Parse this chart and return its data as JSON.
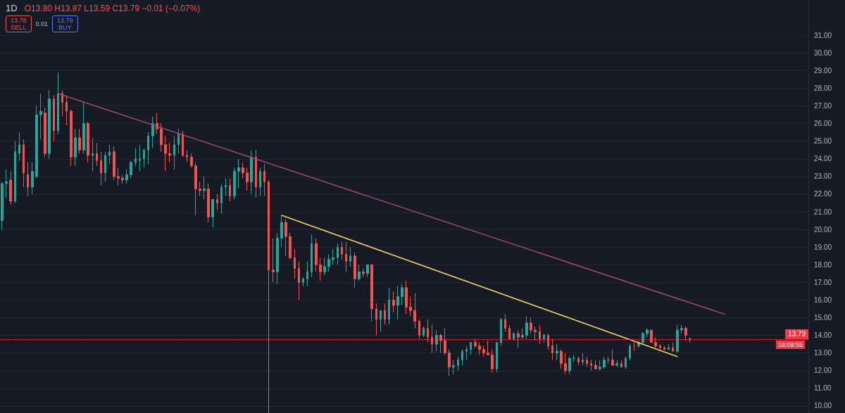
{
  "chart_data": {
    "type": "candlestick",
    "title": "1D",
    "subtitle": "O13.80 H13.87 L13.59 C13.79 −0.01 (−0.07%)",
    "annotations": [
      "13.78",
      "SELL",
      "0.01",
      "13.79",
      "BUY",
      "16:09:55"
    ],
    "categories": [
      null,
      null,
      null,
      null,
      null,
      null,
      null,
      null,
      null,
      null,
      null,
      null,
      null,
      null,
      null,
      null,
      null,
      null,
      null,
      null,
      null,
      null,
      null,
      null,
      null,
      null,
      null,
      null,
      null,
      null,
      null,
      null,
      null,
      null,
      null,
      null,
      null,
      null,
      null,
      null,
      null,
      null,
      null,
      null,
      null,
      null,
      null,
      null,
      null,
      null,
      null,
      null,
      null,
      null,
      null,
      null,
      null,
      null,
      null,
      null,
      null,
      null,
      null,
      null,
      null,
      null,
      null,
      null,
      null,
      null,
      null,
      null,
      null,
      null,
      null,
      null,
      null,
      null,
      null,
      null,
      null,
      null,
      null,
      null,
      null,
      null,
      null,
      null,
      null,
      null,
      null,
      null,
      null,
      null,
      null,
      null,
      null,
      null,
      null,
      null,
      null,
      null,
      null,
      null,
      null,
      null,
      null,
      null,
      null,
      null,
      null,
      null,
      null,
      null,
      null,
      null,
      null,
      null,
      null,
      null,
      null,
      null,
      null,
      null,
      null,
      null,
      null,
      null,
      null,
      null,
      null,
      null,
      null,
      null,
      null,
      null,
      null,
      null,
      null,
      null,
      null,
      null,
      null,
      null,
      null,
      null,
      null,
      null,
      null,
      null,
      null,
      null,
      null,
      null,
      null,
      null,
      null,
      null,
      null,
      null,
      null,
      null,
      null,
      null,
      null,
      null,
      null,
      null,
      null,
      null,
      null,
      null,
      null,
      null,
      null,
      null,
      null,
      null,
      null,
      null,
      null,
      null,
      null,
      null,
      null,
      null,
      null,
      null
    ],
    "series": [
      {
        "type": "candlestick",
        "colors": [
          "#26a69a",
          "#26a69a",
          "#ef5350",
          "#26a69a",
          "#26a69a",
          "#ef5350",
          "#ef5350",
          "#26a69a",
          "#26a69a",
          "#26a69a",
          "#ef5350",
          "#26a69a",
          "#ef5350",
          "#26a69a",
          "#ef5350",
          "#ef5350",
          "#ef5350",
          "#26a69a",
          "#ef5350",
          "#26a69a",
          "#ef5350",
          "#26a69a",
          "#ef5350",
          "#ef5350",
          "#26a69a",
          "#26a69a",
          "#ef5350",
          "#ef5350",
          "#ef5350",
          "#26a69a",
          "#26a69a",
          "#26a69a",
          "#26a69a",
          "#26a69a",
          "#26a69a",
          "#26a69a",
          "#ef5350",
          "#ef5350",
          "#ef5350",
          "#ef5350",
          "#26a69a",
          "#26a69a",
          "#ef5350",
          "#ef5350",
          "#ef5350",
          "#ef5350",
          "#ef5350",
          "#26a69a",
          "#ef5350",
          "#26a69a",
          "#ef5350",
          "#26a69a",
          "#26a69a",
          "#ef5350",
          "#26a69a",
          "#26a69a",
          "#ef5350",
          "#ef5350",
          "#26a69a",
          "#ef5350",
          "#26a69a",
          "#ef5350",
          "#ef5350",
          "#ef5350",
          "#26a69a",
          "#26a69a",
          "#ef5350",
          "#ef5350",
          "#ef5350",
          "#ef5350",
          "#26a69a",
          "#26a69a",
          "#26a69a",
          "#ef5350",
          "#ef5350",
          "#26a69a",
          "#26a69a",
          "#26a69a",
          "#26a69a",
          "#ef5350",
          "#ef5350",
          "#26a69a",
          "#ef5350",
          "#26a69a",
          "#ef5350",
          "#26a69a",
          "#ef5350",
          "#ef5350",
          "#26a69a",
          "#ef5350",
          "#26a69a",
          "#ef5350",
          "#26a69a",
          "#26a69a",
          "#ef5350",
          "#ef5350",
          "#ef5350",
          "#ef5350",
          "#26a69a",
          "#ef5350",
          "#ef5350",
          "#26a69a",
          "#ef5350",
          "#ef5350",
          "#ef5350",
          "#26a69a",
          "#26a69a",
          "#26a69a",
          "#26a69a",
          "#26a69a",
          "#ef5350",
          "#ef5350",
          "#ef5350",
          "#ef5350",
          "#ef5350",
          "#26a69a",
          "#26a69a",
          "#ef5350",
          "#ef5350",
          "#26a69a",
          "#ef5350",
          "#26a69a",
          "#26a69a",
          "#ef5350",
          "#ef5350",
          "#ef5350",
          "#26a69a",
          "#ef5350",
          "#ef5350",
          "#26a69a",
          "#ef5350",
          "#ef5350",
          "#26a69a",
          "#26a69a",
          "#ef5350",
          "#26a69a",
          "#ef5350",
          "#ef5350",
          "#ef5350",
          "#26a69a",
          "#26a69a",
          "#ef5350",
          "#ef5350",
          "#26a69a",
          "#ef5350",
          "#26a69a",
          "#26a69a",
          "#ef5350",
          "#26a69a",
          "#26a69a",
          "#26a69a",
          "#ef5350",
          "#ef5350",
          "#ef5350",
          "#ef5350",
          "#26a69a",
          "#ef5350",
          "#26a69a",
          "#26a69a",
          "#ef5350",
          "#ef5350",
          null,
          null,
          null,
          null,
          null,
          null,
          null,
          null,
          null,
          null,
          null,
          null,
          null,
          null,
          null,
          null,
          null,
          null,
          null,
          null,
          null,
          null,
          null,
          null,
          null,
          null,
          null
        ],
        "ohlc": [
          [
            20.5,
            22.7,
            20.0,
            22.6
          ],
          [
            22.6,
            23.4,
            21.8,
            22.7
          ],
          [
            22.8,
            23.3,
            21.4,
            21.6
          ],
          [
            21.6,
            25.0,
            21.5,
            24.4
          ],
          [
            24.3,
            25.5,
            23.9,
            24.8
          ],
          [
            24.8,
            25.1,
            22.4,
            23.2
          ],
          [
            23.1,
            23.8,
            21.9,
            22.4
          ],
          [
            22.4,
            23.8,
            22.0,
            23.3
          ],
          [
            23.0,
            27.0,
            22.9,
            26.5
          ],
          [
            26.5,
            27.7,
            25.1,
            26.7
          ],
          [
            26.6,
            26.9,
            24.1,
            24.3
          ],
          [
            24.3,
            27.9,
            24.0,
            27.4
          ],
          [
            27.4,
            27.6,
            25.0,
            25.6
          ],
          [
            25.6,
            28.9,
            25.4,
            27.7
          ],
          [
            27.7,
            27.9,
            26.4,
            27.2
          ],
          [
            27.2,
            27.6,
            25.9,
            26.7
          ],
          [
            26.7,
            26.8,
            23.6,
            24.1
          ],
          [
            24.1,
            25.7,
            23.6,
            25.2
          ],
          [
            25.2,
            25.7,
            24.3,
            24.5
          ],
          [
            24.5,
            27.2,
            24.3,
            26.0
          ],
          [
            26.0,
            26.1,
            23.8,
            24.2
          ],
          [
            24.2,
            25.2,
            23.3,
            24.3
          ],
          [
            24.3,
            24.9,
            23.6,
            23.9
          ],
          [
            23.9,
            24.4,
            22.5,
            23.2
          ],
          [
            23.2,
            24.4,
            22.7,
            24.2
          ],
          [
            24.2,
            24.8,
            23.7,
            24.4
          ],
          [
            24.4,
            24.7,
            22.8,
            23.0
          ],
          [
            23.0,
            23.5,
            22.5,
            22.9
          ],
          [
            22.9,
            23.1,
            22.6,
            22.8
          ],
          [
            22.8,
            23.4,
            22.6,
            23.1
          ],
          [
            23.1,
            23.9,
            22.9,
            23.8
          ],
          [
            23.8,
            24.6,
            23.6,
            24.0
          ],
          [
            23.9,
            24.8,
            23.3,
            24.0
          ],
          [
            24.0,
            24.6,
            23.5,
            24.5
          ],
          [
            24.5,
            25.5,
            23.7,
            25.3
          ],
          [
            25.3,
            26.4,
            24.6,
            26.0
          ],
          [
            26.0,
            26.6,
            25.4,
            25.7
          ],
          [
            25.7,
            26.0,
            24.4,
            24.8
          ],
          [
            24.8,
            25.3,
            23.3,
            24.3
          ],
          [
            24.3,
            24.9,
            23.8,
            24.2
          ],
          [
            24.2,
            25.3,
            23.4,
            24.8
          ],
          [
            24.8,
            25.7,
            24.3,
            25.4
          ],
          [
            25.4,
            25.6,
            24.1,
            24.2
          ],
          [
            24.2,
            24.5,
            23.8,
            24.1
          ],
          [
            24.1,
            24.3,
            23.5,
            23.6
          ],
          [
            23.6,
            23.8,
            20.8,
            22.3
          ],
          [
            22.3,
            22.7,
            21.9,
            22.2
          ],
          [
            22.2,
            23.0,
            21.7,
            22.3
          ],
          [
            22.3,
            22.6,
            20.4,
            20.7
          ],
          [
            20.7,
            21.7,
            20.1,
            21.7
          ],
          [
            21.7,
            22.0,
            21.1,
            21.5
          ],
          [
            21.5,
            22.6,
            20.9,
            22.4
          ],
          [
            22.4,
            22.9,
            21.9,
            22.5
          ],
          [
            22.5,
            22.9,
            21.6,
            21.9
          ],
          [
            21.9,
            23.5,
            21.7,
            23.3
          ],
          [
            23.3,
            24.0,
            22.3,
            23.5
          ],
          [
            23.5,
            23.8,
            22.9,
            23.2
          ],
          [
            23.2,
            23.5,
            22.2,
            22.7
          ],
          [
            22.7,
            24.5,
            22.0,
            24.1
          ],
          [
            24.1,
            24.5,
            21.8,
            22.4
          ],
          [
            22.4,
            23.5,
            21.9,
            23.3
          ],
          [
            23.3,
            23.7,
            21.9,
            22.7
          ],
          [
            22.7,
            22.8,
            9.6,
            17.7
          ],
          [
            17.7,
            19.5,
            17.0,
            17.6
          ],
          [
            17.6,
            19.8,
            16.9,
            19.5
          ],
          [
            19.5,
            20.8,
            19.0,
            20.4
          ],
          [
            20.4,
            20.6,
            18.5,
            19.6
          ],
          [
            19.6,
            19.8,
            18.3,
            18.4
          ],
          [
            18.4,
            18.9,
            17.2,
            17.8
          ],
          [
            17.8,
            18.2,
            16.0,
            17.0
          ],
          [
            17.0,
            17.3,
            16.8,
            17.2
          ],
          [
            17.2,
            18.2,
            16.8,
            17.6
          ],
          [
            17.6,
            19.7,
            17.3,
            19.2
          ],
          [
            19.2,
            19.5,
            17.6,
            18.0
          ],
          [
            18.0,
            18.4,
            17.1,
            17.6
          ],
          [
            17.6,
            18.4,
            17.4,
            17.9
          ],
          [
            17.9,
            18.6,
            17.6,
            18.3
          ],
          [
            18.3,
            18.9,
            18.0,
            18.4
          ],
          [
            18.4,
            19.2,
            18.0,
            19.0
          ],
          [
            19.0,
            19.3,
            18.3,
            18.6
          ],
          [
            18.6,
            19.3,
            17.6,
            18.2
          ],
          [
            18.2,
            19.0,
            17.9,
            18.5
          ],
          [
            18.5,
            18.7,
            16.7,
            17.2
          ],
          [
            17.2,
            18.0,
            17.1,
            17.6
          ],
          [
            17.6,
            17.8,
            17.3,
            17.5
          ],
          [
            17.5,
            18.0,
            17.3,
            18.0
          ],
          [
            18.0,
            18.0,
            14.8,
            15.5
          ],
          [
            15.5,
            15.8,
            14.0,
            14.9
          ],
          [
            14.9,
            15.4,
            14.2,
            15.4
          ],
          [
            15.4,
            15.8,
            14.6,
            14.9
          ],
          [
            14.9,
            16.7,
            14.6,
            16.0
          ],
          [
            16.0,
            16.5,
            15.3,
            15.7
          ],
          [
            15.7,
            16.8,
            14.9,
            16.2
          ],
          [
            16.2,
            16.9,
            15.7,
            16.7
          ],
          [
            16.7,
            17.1,
            15.2,
            15.6
          ],
          [
            15.6,
            16.2,
            15.1,
            15.4
          ],
          [
            15.4,
            16.4,
            14.4,
            14.8
          ],
          [
            14.8,
            14.9,
            13.8,
            14.0
          ],
          [
            14.0,
            14.5,
            13.9,
            14.4
          ],
          [
            14.4,
            14.9,
            13.6,
            13.9
          ],
          [
            13.9,
            14.6,
            13.0,
            13.5
          ],
          [
            13.5,
            14.3,
            13.1,
            14.0
          ],
          [
            14.0,
            14.1,
            13.0,
            13.7
          ],
          [
            13.7,
            14.4,
            12.9,
            13.0
          ],
          [
            13.0,
            13.2,
            11.7,
            12.2
          ],
          [
            12.2,
            12.6,
            11.8,
            12.3
          ],
          [
            12.3,
            12.8,
            12.0,
            12.6
          ],
          [
            12.6,
            13.2,
            12.3,
            13.1
          ],
          [
            13.1,
            13.4,
            12.6,
            13.2
          ],
          [
            13.2,
            13.6,
            12.9,
            13.6
          ],
          [
            13.6,
            13.8,
            13.3,
            13.4
          ],
          [
            13.4,
            13.6,
            12.9,
            13.2
          ],
          [
            13.2,
            13.4,
            12.8,
            13.0
          ],
          [
            13.0,
            13.7,
            12.9,
            12.9
          ],
          [
            12.9,
            13.2,
            11.9,
            12.1
          ],
          [
            12.1,
            13.6,
            11.9,
            13.6
          ],
          [
            13.6,
            15.0,
            13.4,
            14.9
          ],
          [
            14.9,
            15.2,
            14.2,
            14.4
          ],
          [
            14.4,
            14.6,
            13.8,
            13.8
          ],
          [
            13.8,
            14.2,
            13.7,
            14.1
          ],
          [
            14.1,
            14.3,
            13.3,
            13.9
          ],
          [
            13.9,
            14.4,
            13.8,
            14.0
          ],
          [
            14.0,
            15.1,
            13.8,
            14.7
          ],
          [
            14.7,
            15.0,
            14.1,
            14.3
          ],
          [
            14.3,
            14.5,
            13.7,
            14.2
          ],
          [
            14.2,
            14.6,
            13.5,
            13.8
          ],
          [
            13.8,
            14.1,
            13.6,
            14.0
          ],
          [
            14.0,
            14.1,
            13.2,
            13.4
          ],
          [
            13.4,
            13.8,
            12.6,
            13.0
          ],
          [
            13.0,
            13.5,
            12.6,
            13.1
          ],
          [
            13.1,
            13.2,
            12.1,
            12.4
          ],
          [
            12.4,
            13.0,
            11.8,
            12.0
          ],
          [
            12.0,
            12.8,
            11.8,
            12.7
          ],
          [
            12.7,
            12.9,
            12.5,
            12.7
          ],
          [
            12.7,
            12.8,
            12.3,
            12.5
          ],
          [
            12.5,
            13.0,
            12.3,
            12.6
          ],
          [
            12.6,
            12.8,
            12.2,
            12.4
          ],
          [
            12.4,
            12.6,
            12.0,
            12.3
          ],
          [
            12.3,
            12.6,
            12.1,
            12.1
          ],
          [
            12.1,
            12.6,
            12.0,
            12.2
          ],
          [
            12.2,
            12.8,
            12.1,
            12.6
          ],
          [
            12.6,
            12.8,
            12.4,
            12.6
          ],
          [
            12.6,
            13.2,
            12.3,
            12.3
          ],
          [
            12.3,
            12.6,
            12.2,
            12.4
          ],
          [
            12.4,
            12.6,
            12.2,
            12.2
          ],
          [
            12.2,
            12.8,
            12.1,
            12.7
          ],
          [
            12.7,
            13.5,
            12.6,
            13.4
          ],
          [
            13.4,
            13.6,
            13.1,
            13.4
          ],
          [
            13.4,
            13.7,
            13.3,
            13.6
          ],
          [
            13.6,
            14.2,
            13.5,
            14.1
          ],
          [
            14.1,
            14.4,
            13.9,
            14.3
          ],
          [
            14.3,
            14.3,
            13.6,
            13.6
          ],
          [
            13.6,
            13.9,
            13.3,
            13.4
          ],
          [
            13.4,
            13.5,
            13.2,
            13.3
          ],
          [
            13.3,
            13.4,
            13.2,
            13.2
          ],
          [
            13.2,
            13.5,
            13.2,
            13.3
          ],
          [
            13.3,
            13.6,
            13.1,
            13.1
          ],
          [
            13.1,
            14.6,
            13.0,
            14.3
          ],
          [
            14.3,
            14.6,
            14.1,
            14.4
          ],
          [
            14.4,
            14.5,
            13.7,
            14.0
          ],
          [
            13.8,
            13.87,
            13.59,
            13.79
          ],
          null,
          null,
          null,
          null,
          null,
          null,
          null,
          null,
          null,
          null,
          null,
          null,
          null,
          null,
          null,
          null,
          null,
          null,
          null,
          null,
          null,
          null,
          null,
          null,
          null,
          null,
          null
        ]
      },
      {
        "type": "line",
        "color": "#a3476a",
        "values": [
          null,
          null,
          null,
          null,
          null,
          null,
          null,
          null,
          null,
          null,
          null,
          null,
          null,
          27.7,
          null,
          null,
          null,
          null,
          null,
          null,
          null,
          null,
          null,
          null,
          null,
          null,
          null,
          null,
          null,
          null,
          null,
          null,
          null,
          null,
          null,
          null,
          null,
          null,
          null,
          null,
          null,
          null,
          null,
          null,
          null,
          null,
          null,
          null,
          null,
          null,
          null,
          null,
          null,
          null,
          null,
          null,
          null,
          null,
          null,
          null,
          null,
          null,
          null,
          null,
          null,
          null,
          null,
          null,
          null,
          null,
          null,
          null,
          null,
          null,
          null,
          null,
          null,
          null,
          null,
          null,
          null,
          null,
          null,
          null,
          null,
          null,
          null,
          null,
          null,
          null,
          null,
          null,
          null,
          null,
          null,
          null,
          null,
          null,
          null,
          null,
          null,
          null,
          null,
          null,
          null,
          null,
          null,
          null,
          null,
          null,
          null,
          null,
          null,
          null,
          null,
          null,
          null,
          null,
          null,
          null,
          null,
          null,
          null,
          null,
          null,
          null,
          null,
          null,
          null,
          null,
          null,
          null,
          null,
          null,
          null,
          null,
          null,
          null,
          null,
          null,
          null,
          null,
          null,
          null,
          null,
          null,
          null,
          null,
          null,
          null,
          null,
          null,
          null,
          null,
          null,
          null,
          null,
          null,
          null,
          null,
          null,
          null,
          null,
          null,
          null,
          null,
          null,
          null,
          15.2,
          null,
          null,
          null,
          null,
          null,
          null,
          null,
          null,
          null,
          null,
          null,
          null,
          null,
          null,
          null,
          null,
          null,
          null,
          null
        ]
      },
      {
        "type": "line",
        "color": "#f0d35a",
        "values": [
          null,
          null,
          null,
          null,
          null,
          null,
          null,
          null,
          null,
          null,
          null,
          null,
          null,
          null,
          null,
          null,
          null,
          null,
          null,
          null,
          null,
          null,
          null,
          null,
          null,
          null,
          null,
          null,
          null,
          null,
          null,
          null,
          null,
          null,
          null,
          null,
          null,
          null,
          null,
          null,
          null,
          null,
          null,
          null,
          null,
          null,
          null,
          null,
          null,
          null,
          null,
          null,
          null,
          null,
          null,
          null,
          null,
          null,
          null,
          null,
          null,
          null,
          null,
          null,
          null,
          20.8,
          null,
          null,
          null,
          null,
          null,
          null,
          null,
          null,
          null,
          null,
          null,
          null,
          null,
          null,
          null,
          null,
          null,
          null,
          null,
          null,
          null,
          null,
          null,
          null,
          null,
          null,
          null,
          null,
          null,
          null,
          null,
          null,
          null,
          null,
          null,
          null,
          null,
          null,
          null,
          null,
          null,
          null,
          null,
          null,
          null,
          null,
          null,
          null,
          null,
          null,
          null,
          null,
          null,
          null,
          null,
          null,
          null,
          null,
          null,
          null,
          null,
          null,
          null,
          null,
          null,
          null,
          null,
          null,
          null,
          null,
          null,
          null,
          null,
          null,
          null,
          null,
          null,
          null,
          null,
          null,
          null,
          null,
          null,
          null,
          null,
          null,
          null,
          null,
          null,
          null,
          null,
          12.8,
          null,
          null,
          null,
          null,
          null,
          null,
          null,
          null,
          null,
          null,
          null,
          null,
          null,
          null,
          null,
          null,
          null,
          null,
          null,
          null,
          null,
          null,
          null,
          null,
          null,
          null,
          null,
          null,
          null,
          null
        ]
      }
    ],
    "ref_lines": [
      {
        "axis": "y",
        "value": 13.79,
        "label": "13.79",
        "color": "#f23645",
        "line_style": "dotted"
      }
    ],
    "ylim": [
      9.6,
      33.0
    ],
    "yticks": [
      {
        "value": 10,
        "label": "10.00"
      },
      {
        "value": 11,
        "label": "11.00"
      },
      {
        "value": 12,
        "label": "12.00"
      },
      {
        "value": 13,
        "label": "13.00"
      },
      {
        "value": 14,
        "label": "14.00"
      },
      {
        "value": 15,
        "label": "15.00"
      },
      {
        "value": 16,
        "label": "16.00"
      },
      {
        "value": 17,
        "label": "17.00"
      },
      {
        "value": 18,
        "label": "18.00"
      },
      {
        "value": 19,
        "label": "19.00"
      },
      {
        "value": 20,
        "label": "20.00"
      },
      {
        "value": 21,
        "label": "21.00"
      },
      {
        "value": 22,
        "label": "22.00"
      },
      {
        "value": 23,
        "label": "23.00"
      },
      {
        "value": 24,
        "label": "24.00"
      },
      {
        "value": 25,
        "label": "25.00"
      },
      {
        "value": 26,
        "label": "26.00"
      },
      {
        "value": 27,
        "label": "27.00"
      },
      {
        "value": 28,
        "label": "28.00"
      },
      {
        "value": 29,
        "label": "29.00"
      },
      {
        "value": 30,
        "label": "30.00"
      },
      {
        "value": 31,
        "label": "31.00"
      }
    ],
    "grid": "y",
    "tick_labels": "y"
  }
}
